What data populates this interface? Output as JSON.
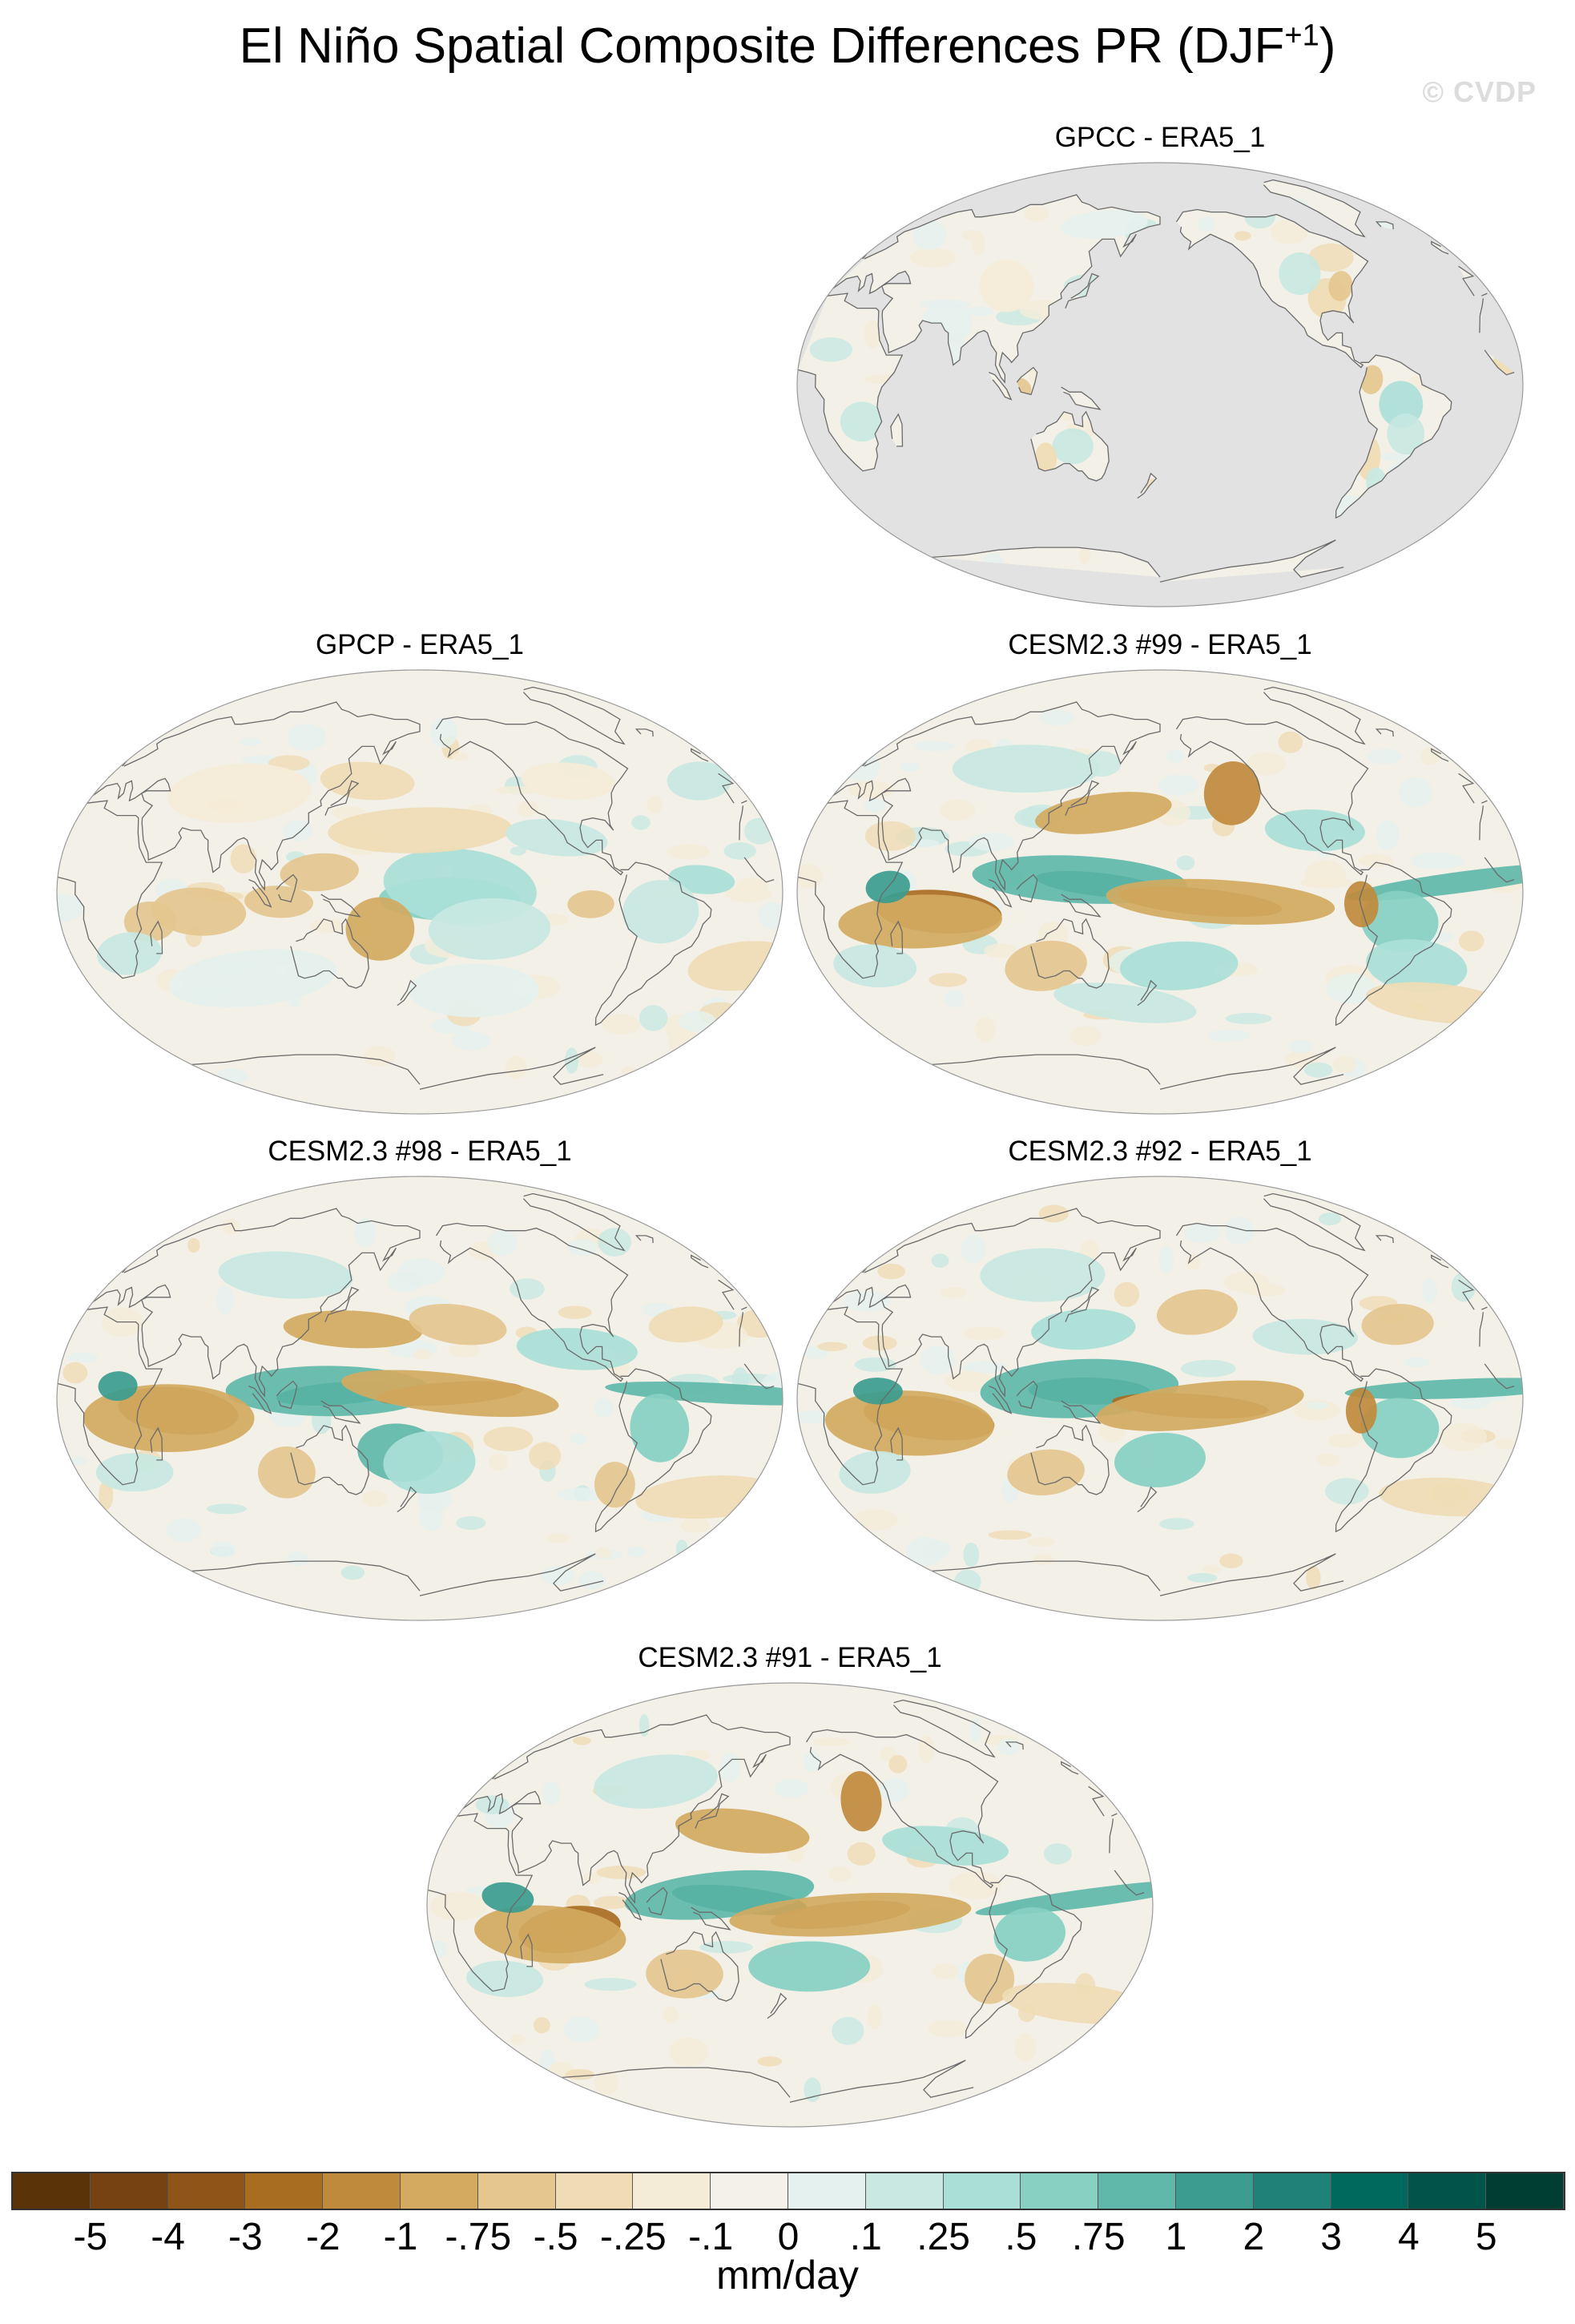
{
  "figure": {
    "title_main": "El Niño Spatial Composite Differences PR (DJF",
    "title_sup": "+1",
    "title_end": ")",
    "copyright": "© CVDP"
  },
  "panels": [
    {
      "label": "GPCC - ERA5_1",
      "coverage": "land-only"
    },
    {
      "label": "GPCP - ERA5_1",
      "coverage": "global"
    },
    {
      "label": "CESM2.3 #99 - ERA5_1",
      "coverage": "global"
    },
    {
      "label": "CESM2.3 #98 - ERA5_1",
      "coverage": "global"
    },
    {
      "label": "CESM2.3 #92 - ERA5_1",
      "coverage": "global"
    },
    {
      "label": "CESM2.3 #91 - ERA5_1",
      "coverage": "global"
    }
  ],
  "colorbar": {
    "units": "mm/day",
    "tick_labels": [
      "-5",
      "-4",
      "-3",
      "-2",
      "-1",
      "-.75",
      "-.5",
      "-.25",
      "-.1",
      "0",
      ".1",
      ".25",
      ".5",
      ".75",
      "1",
      "2",
      "3",
      "4",
      "5"
    ],
    "colors": [
      "#5a3408",
      "#774212",
      "#8f5417",
      "#a96d22",
      "#c08a3c",
      "#d3aa60",
      "#e4c68e",
      "#efdcb4",
      "#f5ecd8",
      "#f3f1ea",
      "#e5f1ee",
      "#c8e8e1",
      "#aadfd7",
      "#87d0c2",
      "#5fb8a9",
      "#3b9c8f",
      "#208178",
      "#00695e",
      "#01544a",
      "#003d33"
    ]
  },
  "colors": {
    "missing_data": "#e2e2e2",
    "coastline": "#6a6a6a",
    "neutral_fill": "#f3f0e8"
  }
}
